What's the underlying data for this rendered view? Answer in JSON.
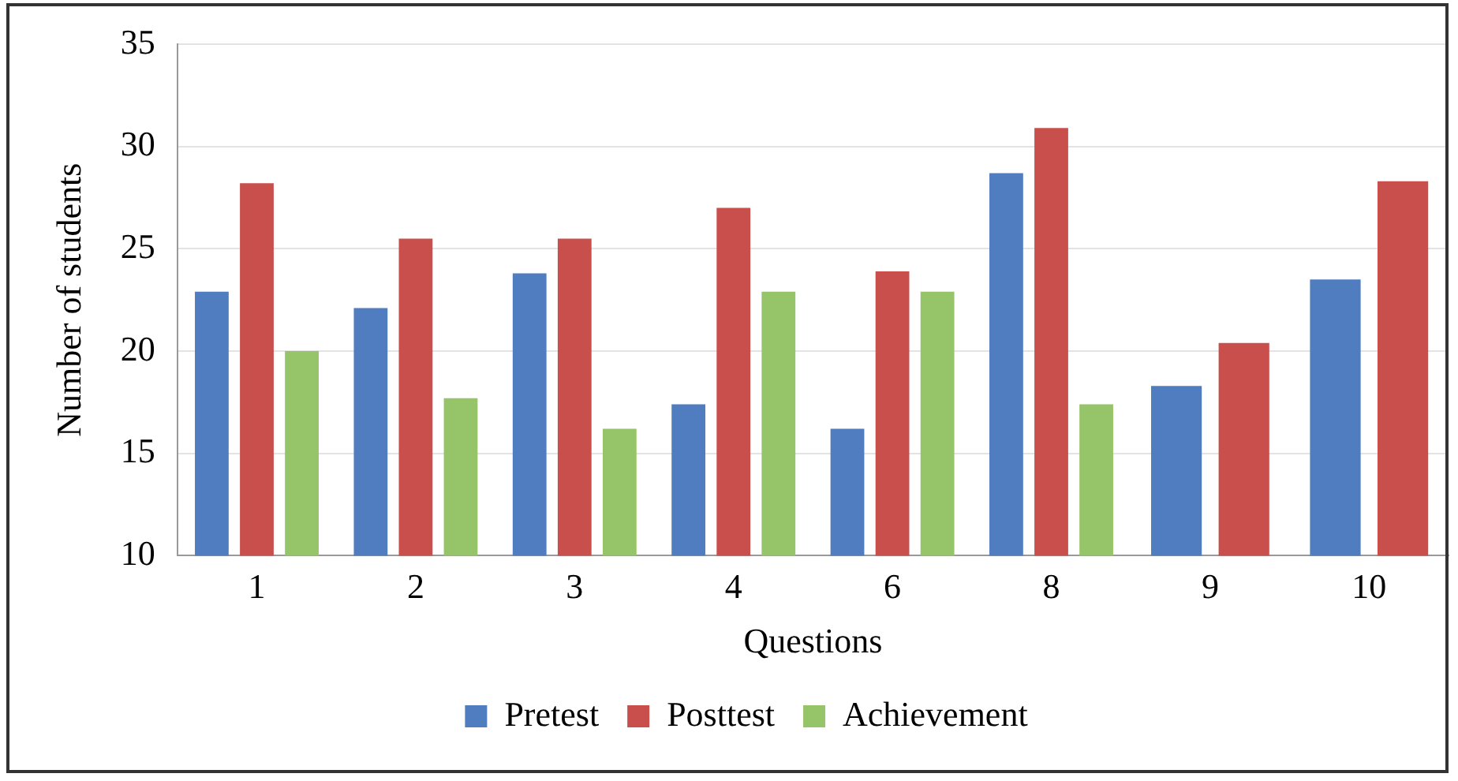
{
  "chart_data": {
    "type": "bar",
    "xlabel": "Questions",
    "ylabel": "Number of students",
    "categories": [
      "1",
      "2",
      "3",
      "4",
      "6",
      "8",
      "9",
      "10"
    ],
    "series": [
      {
        "name": "Pretest",
        "color": "#4f7dc0",
        "values": [
          22.9,
          22.1,
          23.8,
          17.4,
          16.2,
          28.7,
          18.3,
          23.5
        ]
      },
      {
        "name": "Posttest",
        "color": "#c94f4d",
        "values": [
          28.2,
          25.5,
          25.5,
          27.0,
          23.9,
          30.9,
          20.4,
          28.3
        ]
      },
      {
        "name": "Achievement",
        "color": "#96c468",
        "values": [
          20.0,
          17.7,
          16.2,
          22.9,
          22.9,
          17.4,
          null,
          null
        ]
      }
    ],
    "ylim": [
      10,
      35
    ],
    "yticks": [
      10,
      15,
      20,
      25,
      30,
      35
    ],
    "grid": "y",
    "legend": "bottom"
  }
}
